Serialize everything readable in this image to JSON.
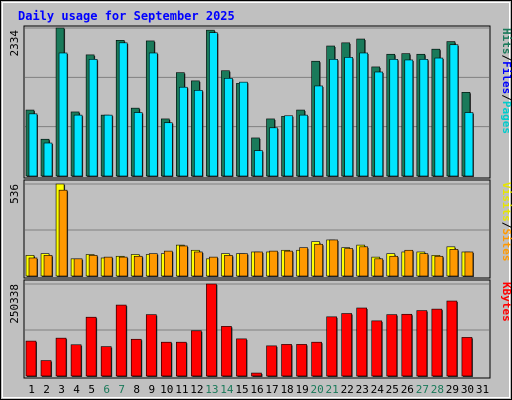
{
  "chart_data": {
    "type": "bar",
    "title": "Daily usage for September 2025",
    "x": [
      "1",
      "2",
      "3",
      "4",
      "5",
      "6",
      "7",
      "8",
      "9",
      "10",
      "11",
      "12",
      "13",
      "14",
      "15",
      "16",
      "17",
      "18",
      "19",
      "20",
      "21",
      "22",
      "23",
      "24",
      "25",
      "26",
      "27",
      "28",
      "29",
      "30",
      "31"
    ],
    "weekend_days": [
      "6",
      "7",
      "13",
      "14",
      "20",
      "21",
      "27",
      "28"
    ],
    "panels": [
      {
        "id": "top",
        "ymax_label": "2334",
        "ymax": 2334,
        "axis_label_parts": [
          "Pages",
          "/",
          "Files",
          "/",
          "Hits"
        ],
        "series": [
          {
            "name": "Hits",
            "color": "#1a7a5a",
            "values": [
              1040,
              580,
              2334,
              1010,
              1910,
              960,
              2140,
              1070,
              2130,
              900,
              1630,
              1500,
              2300,
              1660,
              1460,
              600,
              900,
              940,
              1040,
              1810,
              2050,
              2100,
              2160,
              1720,
              1920,
              1930,
              1920,
              2000,
              2120,
              1320,
              0
            ]
          },
          {
            "name": "Files",
            "color": "#00e5ff",
            "values": [
              980,
              520,
              1940,
              960,
              1840,
              960,
              2100,
              1000,
              1940,
              840,
              1400,
              1350,
              2260,
              1540,
              1480,
              400,
              760,
              950,
              960,
              1420,
              1840,
              1870,
              1940,
              1640,
              1840,
              1830,
              1840,
              1860,
              2070,
              1000,
              0
            ]
          },
          {
            "name": "Pages",
            "color": "#00e5ff",
            "values": []
          }
        ]
      },
      {
        "id": "middle",
        "ymax_label": "536",
        "ymax": 536,
        "axis_label_parts": [
          "Sites",
          "/",
          "Visits"
        ],
        "series": [
          {
            "name": "Visits",
            "color": "#ffff00",
            "values": [
              120,
              130,
              536,
              100,
              125,
              105,
              115,
              125,
              125,
              130,
              180,
              150,
              100,
              130,
              130,
              140,
              140,
              150,
              150,
              200,
              210,
              165,
              180,
              110,
              130,
              140,
              140,
              120,
              170,
              140,
              0
            ]
          },
          {
            "name": "Sites",
            "color": "#ff9900",
            "values": [
              105,
              120,
              500,
              100,
              120,
              110,
              110,
              115,
              130,
              145,
              175,
              140,
              110,
              120,
              130,
              140,
              145,
              145,
              165,
              185,
              210,
              160,
              170,
              100,
              115,
              150,
              130,
              115,
              155,
              140,
              0
            ]
          }
        ]
      },
      {
        "id": "bottom",
        "ymax_label": "250338",
        "ymax": 250338,
        "axis_label_parts": [
          "KBytes"
        ],
        "series": [
          {
            "name": "KBytes",
            "color": "#ff0000",
            "values": [
              95000,
              42000,
              103000,
              85000,
              160000,
              80000,
              193000,
              100000,
              167000,
              92000,
              92000,
              123000,
              250338,
              135000,
              101000,
              8000,
              82000,
              86000,
              86000,
              92000,
              161000,
              170000,
              185000,
              150000,
              167000,
              168000,
              178000,
              182000,
              204000,
              105000,
              0
            ]
          }
        ]
      }
    ],
    "grid": true,
    "legend": "right"
  }
}
